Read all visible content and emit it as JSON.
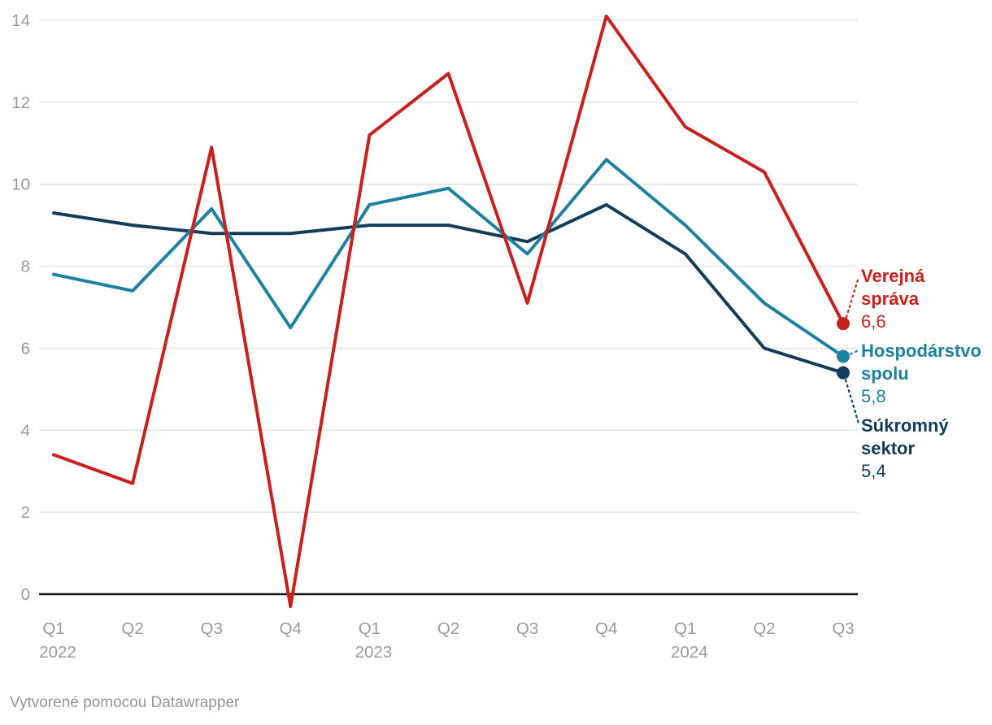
{
  "chart_data": {
    "type": "line",
    "title": "",
    "xlabel": "",
    "ylabel": "",
    "x_tick_labels": [
      {
        "quarter": "Q1",
        "year": "2022"
      },
      {
        "quarter": "Q2"
      },
      {
        "quarter": "Q3"
      },
      {
        "quarter": "Q4"
      },
      {
        "quarter": "Q1",
        "year": "2023"
      },
      {
        "quarter": "Q2"
      },
      {
        "quarter": "Q3"
      },
      {
        "quarter": "Q4"
      },
      {
        "quarter": "Q1",
        "year": "2024"
      },
      {
        "quarter": "Q2"
      },
      {
        "quarter": "Q3"
      }
    ],
    "y_ticks": [
      0,
      2,
      4,
      6,
      8,
      10,
      12,
      14
    ],
    "ylim": [
      -0.5,
      14.2
    ],
    "grid": "horizontal",
    "legend_position": "right-end-labels",
    "series": [
      {
        "name": "Verejná správa",
        "label_lines": [
          "Verejná",
          "správa"
        ],
        "display_value": "6,6",
        "color": "#c7211e",
        "values": [
          3.4,
          2.7,
          10.9,
          -0.3,
          11.2,
          12.7,
          7.1,
          14.1,
          11.4,
          10.3,
          6.6
        ]
      },
      {
        "name": "Hospodárstvo spolu",
        "label_lines": [
          "Hospodárstvo",
          "spolu"
        ],
        "display_value": "5,8",
        "color": "#1d81a2",
        "values": [
          7.8,
          7.4,
          9.4,
          6.5,
          9.5,
          9.9,
          8.3,
          10.6,
          9.0,
          7.1,
          5.8
        ]
      },
      {
        "name": "Súkromný sektor",
        "label_lines": [
          "Súkromný",
          "sektor"
        ],
        "display_value": "5,4",
        "color": "#123c58",
        "values": [
          9.3,
          9.0,
          8.8,
          8.8,
          9.0,
          9.0,
          8.6,
          9.5,
          8.3,
          6.0,
          5.4
        ]
      }
    ],
    "colors": {
      "gridline": "#e2e2e2",
      "zero_line": "#1a1a1a",
      "axis_text": "#9a9a9a"
    }
  },
  "footer": {
    "text": "Vytvorené pomocou Datawrapper"
  }
}
